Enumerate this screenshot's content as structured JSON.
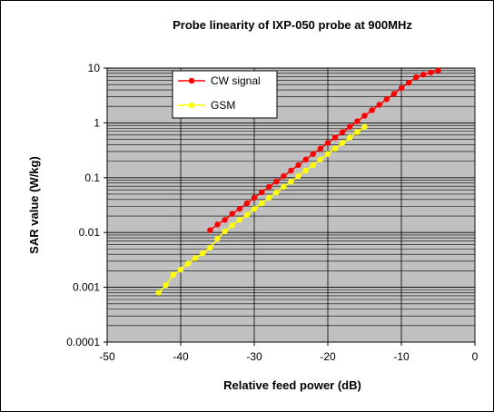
{
  "chart_data": {
    "type": "scatter",
    "title": "Probe linearity of IXP-050 probe at 900MHz",
    "xlabel": "Relative feed power (dB)",
    "ylabel": "SAR value (W/kg)",
    "xlim": [
      -50,
      0
    ],
    "ylim": [
      0.0001,
      10
    ],
    "yscale": "log",
    "xticks": [
      "-50",
      "-40",
      "-30",
      "-20",
      "-10",
      "0"
    ],
    "yticks": [
      "0.0001",
      "0.001",
      "0.01",
      "0.1",
      "1",
      "10"
    ],
    "grid": true,
    "legend_position": "top-left",
    "colors": {
      "plot_background": "#c0c0c0",
      "cw": "#ff0000",
      "gsm": "#ffff00",
      "grid": "#000000"
    },
    "series": [
      {
        "name": "CW signal",
        "x": [
          -36,
          -35,
          -34,
          -33,
          -32,
          -31,
          -30,
          -29,
          -28,
          -27,
          -26,
          -25,
          -24,
          -23,
          -22,
          -21,
          -20,
          -19,
          -18,
          -17,
          -16,
          -15,
          -14,
          -13,
          -12,
          -11,
          -10,
          -9,
          -8,
          -7,
          -6,
          -5
        ],
        "y": [
          0.011,
          0.014,
          0.017,
          0.022,
          0.027,
          0.034,
          0.043,
          0.054,
          0.068,
          0.085,
          0.107,
          0.135,
          0.17,
          0.214,
          0.27,
          0.34,
          0.43,
          0.54,
          0.68,
          0.85,
          1.07,
          1.35,
          1.7,
          2.14,
          2.7,
          3.4,
          4.3,
          5.4,
          6.8,
          7.6,
          8.3,
          9.0
        ]
      },
      {
        "name": "GSM",
        "x": [
          -43,
          -42,
          -41,
          -40,
          -39,
          -38,
          -37,
          -36,
          -35,
          -34,
          -33,
          -32,
          -31,
          -30,
          -29,
          -28,
          -27,
          -26,
          -25,
          -24,
          -23,
          -22,
          -21,
          -20,
          -19,
          -18,
          -17,
          -16,
          -15
        ],
        "y": [
          0.0008,
          0.0011,
          0.0017,
          0.0021,
          0.0027,
          0.0034,
          0.0042,
          0.0053,
          0.0077,
          0.0105,
          0.0135,
          0.017,
          0.021,
          0.027,
          0.034,
          0.043,
          0.054,
          0.068,
          0.085,
          0.107,
          0.135,
          0.17,
          0.214,
          0.27,
          0.34,
          0.43,
          0.54,
          0.68,
          0.85
        ]
      }
    ]
  }
}
